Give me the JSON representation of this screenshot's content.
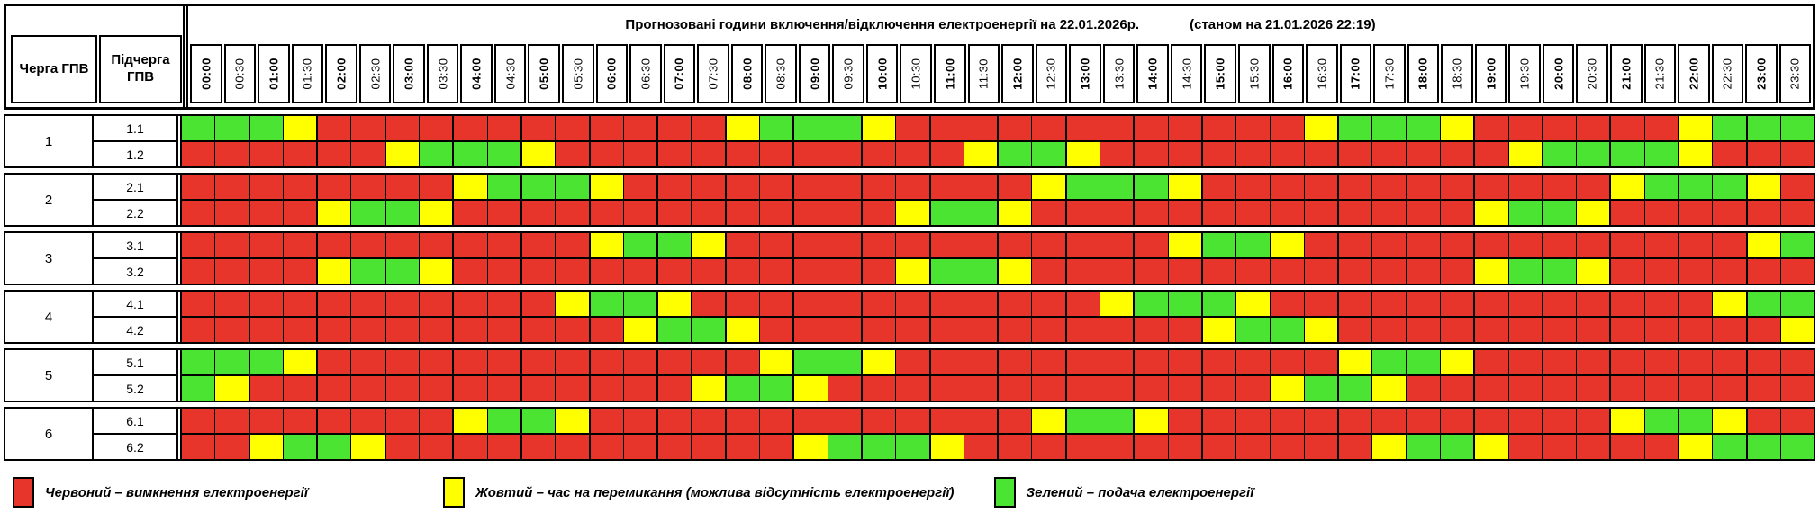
{
  "header": {
    "queue_col": "Черга ГПВ",
    "subqueue_col": "Підчерга ГПВ"
  },
  "legend": {
    "items": [
      {
        "state": "R",
        "label": "Червоний – вимкнення електроенергії"
      },
      {
        "state": "Y",
        "label": "Жовтий – час на перемикання (можлива відсутність електроенергії)"
      },
      {
        "state": "G",
        "label": "Зелений – подача електроенергії"
      }
    ]
  },
  "chart_data": {
    "type": "heatmap",
    "title": "Прогнозовані години включення/відключення електроенергії на 22.01.2026р.",
    "status": "(станом на 21.01.2026 22:19)",
    "x_labels": [
      "00:00",
      "00:30",
      "01:00",
      "01:30",
      "02:00",
      "02:30",
      "03:00",
      "03:30",
      "04:00",
      "04:30",
      "05:00",
      "05:30",
      "06:00",
      "06:30",
      "07:00",
      "07:30",
      "08:00",
      "08:30",
      "09:00",
      "09:30",
      "10:00",
      "10:30",
      "11:00",
      "11:30",
      "12:00",
      "12:30",
      "13:00",
      "13:30",
      "14:00",
      "14:30",
      "15:00",
      "15:30",
      "16:00",
      "16:30",
      "17:00",
      "17:30",
      "18:00",
      "18:30",
      "19:00",
      "19:30",
      "20:00",
      "20:30",
      "21:00",
      "21:30",
      "22:00",
      "22:30",
      "23:00",
      "23:30"
    ],
    "cell_states": {
      "R": "вимкнення електроенергії",
      "Y": "час на перемикання (можлива відсутність електроенергії)",
      "G": "подача електроенергії"
    },
    "colors": {
      "R": "#E8352B",
      "Y": "#FFFF00",
      "G": "#4BE433"
    },
    "rows": [
      {
        "queue": "1",
        "subqueue": "1.1",
        "cells": "GGGYRRRRRRRRRRRRYGGGYRRRRRRRRRRRRYGGGYRRRRRRYGGG"
      },
      {
        "queue": "1",
        "subqueue": "1.2",
        "cells": "RRRRRRYGGGYRRRRRRRRRRRRYGGYRRRRRRRRRRRRYGGGGYRRR"
      },
      {
        "queue": "2",
        "subqueue": "2.1",
        "cells": "RRRRRRRRYGGGYRRRRRRRRRRRRYGGGYRRRRRRRRRRRRYGGGYR"
      },
      {
        "queue": "2",
        "subqueue": "2.2",
        "cells": "RRRRYGGYRRRRRRRRRRRRRYGGYRRRRRRRRRRRRRYGGYRRRRRR"
      },
      {
        "queue": "3",
        "subqueue": "3.1",
        "cells": "RRRRRRRRRRRRYGGYRRRRRRRRRRRRRYGGYRRRRRRRRRRRRRYG"
      },
      {
        "queue": "3",
        "subqueue": "3.2",
        "cells": "RRRRYGGYRRRRRRRRRRRRRYGGYRRRRRRRRRRRRRYGGYRRRRRR"
      },
      {
        "queue": "4",
        "subqueue": "4.1",
        "cells": "RRRRRRRRRRRYGGYRRRRRRRRRRRRYGGGYRRRRRRRRRRRRRYGG"
      },
      {
        "queue": "4",
        "subqueue": "4.2",
        "cells": "RRRRRRRRRRRRRYGGYRRRRRRRRRRRRRYGGYRRRRRRRRRRRRRY"
      },
      {
        "queue": "5",
        "subqueue": "5.1",
        "cells": "GGGYRRRRRRRRRRRRRYGGYRRRRRRRRRRRRRYGGYRRRRRRRRRR"
      },
      {
        "queue": "5",
        "subqueue": "5.2",
        "cells": "GYRRRRRRRRRRRRRYGGYRRRRRRRRRRRRRYGGYRRRRRRRRRRRR"
      },
      {
        "queue": "6",
        "subqueue": "6.1",
        "cells": "RRRRRRRRYGGYRRRRRRRRRRRRRYGGYRRRRRRRRRRRRRYGGYRR"
      },
      {
        "queue": "6",
        "subqueue": "6.2",
        "cells": "RRYGGYRRRRRRRRRRRRYGGGYRRRRRRRRRRRRYGGYRRRRRYGGG"
      }
    ]
  }
}
